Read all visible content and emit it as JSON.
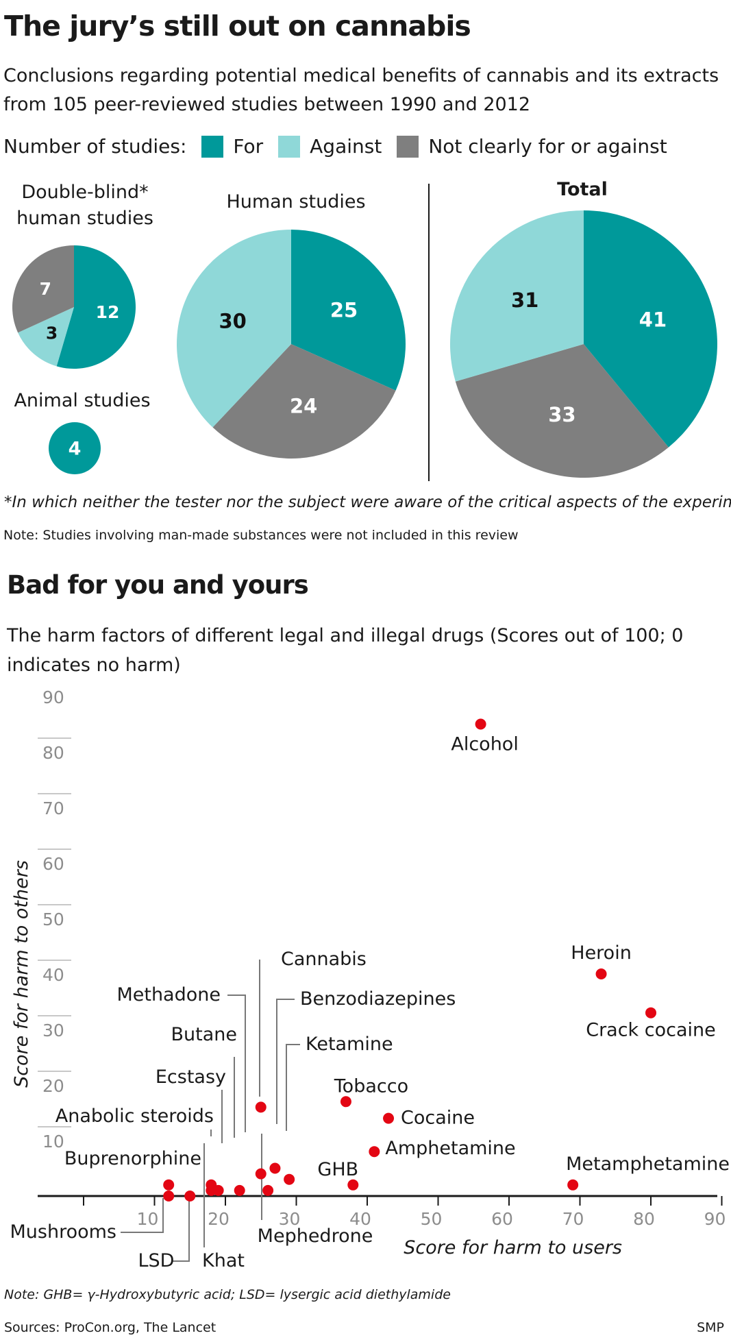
{
  "title": "The jury’s still out on cannabis",
  "subtitle": "Conclusions regarding potential medical benefits of cannabis and its extracts from 105 peer-reviewed studies between  1990 and 2012",
  "legend": {
    "label": "Number of studies:",
    "items": [
      {
        "name": "For",
        "color": "#00999a"
      },
      {
        "name": "Against",
        "color": "#8fd8d8"
      },
      {
        "name": "Not clearly for or against",
        "color": "#7f7f7f"
      }
    ]
  },
  "pies": {
    "double_blind": {
      "label": "Double-blind* human studies"
    },
    "human": {
      "label": "Human studies"
    },
    "total": {
      "label": "Total"
    },
    "animal": {
      "label": "Animal studies"
    }
  },
  "footnote_star": "*In which neither the tester nor the subject were aware of the critical aspects of the experiment",
  "note1": "Note: Studies involving man-made substances were not included in this review",
  "title2": "Bad for you and yours",
  "subtitle2": "The harm factors of different legal and illegal drugs (Scores out of 100; 0 indicates no harm)",
  "note2": "Note: GHB= γ-Hydroxybutyric acid; LSD= lysergic acid diethylamide",
  "sources": "Sources: ProCon.org, The Lancet",
  "credit": "SMP",
  "chart_data": [
    {
      "type": "pie",
      "title": "Double-blind* human studies",
      "categories": [
        "For",
        "Against",
        "Not clearly for or against"
      ],
      "values": [
        12,
        3,
        7
      ]
    },
    {
      "type": "pie",
      "title": "Human studies",
      "categories": [
        "For",
        "Not clearly for or against",
        "Against"
      ],
      "values": [
        25,
        24,
        30
      ]
    },
    {
      "type": "pie",
      "title": "Total",
      "categories": [
        "For",
        "Not clearly for or against",
        "Against"
      ],
      "values": [
        41,
        33,
        31
      ]
    },
    {
      "type": "pie",
      "title": "Animal studies",
      "categories": [
        "For"
      ],
      "values": [
        4
      ]
    },
    {
      "type": "scatter",
      "title": "Bad for you and yours",
      "xlabel": "Score for harm to users",
      "ylabel": "Score for harm to others",
      "xlim": [
        0,
        90
      ],
      "ylim": [
        0,
        90
      ],
      "xticks": [
        10,
        20,
        30,
        40,
        50,
        60,
        70,
        80,
        90
      ],
      "yticks": [
        10,
        20,
        30,
        40,
        50,
        60,
        70,
        80,
        90
      ],
      "point_color": "#e30613",
      "points": [
        {
          "name": "Alcohol",
          "x": 56,
          "y": 85
        },
        {
          "name": "Heroin",
          "x": 73,
          "y": 40
        },
        {
          "name": "Crack cocaine",
          "x": 80,
          "y": 33
        },
        {
          "name": "Metamphetamine",
          "x": 69,
          "y": 2
        },
        {
          "name": "Tobacco",
          "x": 37,
          "y": 17
        },
        {
          "name": "Cocaine",
          "x": 43,
          "y": 14
        },
        {
          "name": "Amphetamine",
          "x": 41,
          "y": 8
        },
        {
          "name": "GHB",
          "x": 38,
          "y": 2
        },
        {
          "name": "Cannabis",
          "x": 25,
          "y": 16
        },
        {
          "name": "Benzodiazepines",
          "x": 27,
          "y": 5
        },
        {
          "name": "Ketamine",
          "x": 29,
          "y": 3
        },
        {
          "name": "Methadone",
          "x": 25,
          "y": 4
        },
        {
          "name": "Mephedrone",
          "x": 26,
          "y": 1
        },
        {
          "name": "Butane",
          "x": 22,
          "y": 1
        },
        {
          "name": "Ecstasy",
          "x": 19,
          "y": 1
        },
        {
          "name": "Anabolic steroids",
          "x": 18,
          "y": 2
        },
        {
          "name": "Khat",
          "x": 18,
          "y": 1
        },
        {
          "name": "Buprenorphine",
          "x": 12,
          "y": 2
        },
        {
          "name": "Mushrooms",
          "x": 12,
          "y": 0
        },
        {
          "name": "LSD",
          "x": 15,
          "y": 0
        }
      ]
    }
  ]
}
